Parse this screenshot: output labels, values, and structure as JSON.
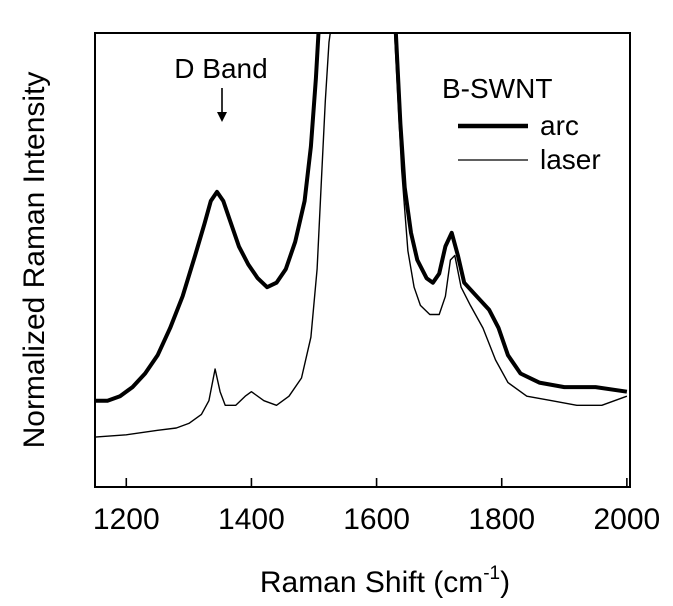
{
  "chart_data": {
    "type": "line",
    "xlabel": "Raman Shift (cm",
    "xlabel_sup": "-1",
    "xlabel_close": ")",
    "ylabel": "Normalized Raman Intensity",
    "xlim": [
      1150,
      2005
    ],
    "ylim": [
      0,
      1
    ],
    "x_ticks": [
      1200,
      1400,
      1600,
      1800,
      2000
    ],
    "y_ticks_labeled": false,
    "grid": false,
    "legend_title": "B-SWNT",
    "legend_position": "top-right",
    "annotation": {
      "text": "D Band",
      "x": 1345
    },
    "series": [
      {
        "name": "arc",
        "style": "thick",
        "color": "#000000",
        "points": [
          [
            1150,
            0.19
          ],
          [
            1170,
            0.19
          ],
          [
            1190,
            0.2
          ],
          [
            1210,
            0.22
          ],
          [
            1230,
            0.25
          ],
          [
            1250,
            0.29
          ],
          [
            1270,
            0.35
          ],
          [
            1290,
            0.42
          ],
          [
            1310,
            0.51
          ],
          [
            1325,
            0.58
          ],
          [
            1335,
            0.63
          ],
          [
            1345,
            0.65
          ],
          [
            1355,
            0.63
          ],
          [
            1365,
            0.59
          ],
          [
            1380,
            0.53
          ],
          [
            1395,
            0.49
          ],
          [
            1410,
            0.46
          ],
          [
            1425,
            0.44
          ],
          [
            1440,
            0.45
          ],
          [
            1455,
            0.48
          ],
          [
            1470,
            0.54
          ],
          [
            1485,
            0.63
          ],
          [
            1495,
            0.75
          ],
          [
            1503,
            0.9
          ],
          [
            1508,
            1.02
          ]
        ]
      },
      {
        "name": "arc",
        "style": "thick",
        "color": "#000000",
        "points": [
          [
            1630,
            1.02
          ],
          [
            1638,
            0.8
          ],
          [
            1645,
            0.66
          ],
          [
            1655,
            0.56
          ],
          [
            1665,
            0.5
          ],
          [
            1680,
            0.46
          ],
          [
            1690,
            0.45
          ],
          [
            1700,
            0.47
          ],
          [
            1710,
            0.53
          ],
          [
            1720,
            0.56
          ],
          [
            1730,
            0.51
          ],
          [
            1740,
            0.45
          ],
          [
            1760,
            0.42
          ],
          [
            1780,
            0.39
          ],
          [
            1795,
            0.35
          ],
          [
            1810,
            0.29
          ],
          [
            1830,
            0.25
          ],
          [
            1860,
            0.23
          ],
          [
            1900,
            0.22
          ],
          [
            1950,
            0.22
          ],
          [
            2000,
            0.21
          ]
        ]
      },
      {
        "name": "laser",
        "style": "thin",
        "color": "#000000",
        "points": [
          [
            1150,
            0.11
          ],
          [
            1200,
            0.115
          ],
          [
            1250,
            0.125
          ],
          [
            1280,
            0.13
          ],
          [
            1300,
            0.14
          ],
          [
            1320,
            0.16
          ],
          [
            1332,
            0.19
          ],
          [
            1342,
            0.26
          ],
          [
            1350,
            0.21
          ],
          [
            1358,
            0.18
          ],
          [
            1375,
            0.18
          ],
          [
            1390,
            0.2
          ],
          [
            1400,
            0.21
          ],
          [
            1420,
            0.19
          ],
          [
            1440,
            0.18
          ],
          [
            1460,
            0.2
          ],
          [
            1480,
            0.24
          ],
          [
            1495,
            0.33
          ],
          [
            1505,
            0.48
          ],
          [
            1512,
            0.68
          ],
          [
            1518,
            0.85
          ],
          [
            1524,
            0.98
          ],
          [
            1528,
            1.02
          ]
        ]
      },
      {
        "name": "laser",
        "style": "thin",
        "color": "#000000",
        "points": [
          [
            1628,
            1.02
          ],
          [
            1640,
            0.7
          ],
          [
            1650,
            0.52
          ],
          [
            1660,
            0.44
          ],
          [
            1670,
            0.4
          ],
          [
            1685,
            0.38
          ],
          [
            1700,
            0.38
          ],
          [
            1710,
            0.42
          ],
          [
            1718,
            0.5
          ],
          [
            1725,
            0.51
          ],
          [
            1735,
            0.44
          ],
          [
            1750,
            0.4
          ],
          [
            1770,
            0.35
          ],
          [
            1790,
            0.28
          ],
          [
            1810,
            0.23
          ],
          [
            1840,
            0.2
          ],
          [
            1880,
            0.19
          ],
          [
            1920,
            0.18
          ],
          [
            1960,
            0.18
          ],
          [
            2000,
            0.2
          ]
        ]
      }
    ]
  }
}
